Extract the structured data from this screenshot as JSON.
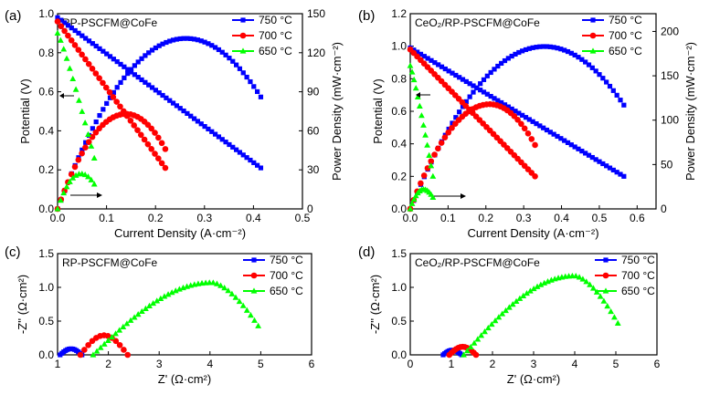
{
  "chart_data": [
    {
      "id": "a",
      "type": "line",
      "panel_label": "(a)",
      "title": "RP-PSCFM@CoFe",
      "xlabel": "Current Density (A·cm⁻²)",
      "ylabel": "Potential (V)",
      "y2label": "Power Density  (mW·cm⁻²)",
      "xlim": [
        0,
        0.5
      ],
      "ylim": [
        0,
        1.0
      ],
      "y2lim": [
        0,
        150
      ],
      "xticks": [
        "0.0",
        "0.1",
        "0.2",
        "0.3",
        "0.4",
        "0.5"
      ],
      "yticks": [
        "0.0",
        "0.2",
        "0.4",
        "0.6",
        "0.8",
        "1.0"
      ],
      "y2ticks": [
        "0",
        "30",
        "60",
        "90",
        "120",
        "150"
      ],
      "legend_position": "top-right",
      "series": [
        {
          "name": "750 °C",
          "color": "#0000ff",
          "marker": "square",
          "jmax": 0.415,
          "v0": 0.98,
          "vend": 0.21,
          "pmax": 131,
          "pk": 0.262,
          "pend": 86
        },
        {
          "name": "700 °C",
          "color": "#ff0000",
          "marker": "circle",
          "jmax": 0.22,
          "v0": 0.96,
          "vend": 0.21,
          "pmax": 73,
          "pk": 0.14,
          "pend": 46
        },
        {
          "name": "650 °C",
          "color": "#00ff00",
          "marker": "triangle",
          "jmax": 0.075,
          "v0": 0.9,
          "vend": 0.26,
          "pmax": 27,
          "pk": 0.048,
          "pend": 19
        }
      ]
    },
    {
      "id": "b",
      "type": "line",
      "panel_label": "(b)",
      "title": "CeO₂/RP-PSCFM@CoFe",
      "xlabel": "Current Density (A·cm⁻²)",
      "ylabel": "Potential (V)",
      "y2label": "Power Density  (mW·cm⁻²)",
      "xlim": [
        0,
        0.65
      ],
      "ylim": [
        0,
        1.2
      ],
      "y2lim": [
        0,
        220
      ],
      "xticks": [
        "0.0",
        "0.1",
        "0.2",
        "0.3",
        "0.4",
        "0.5",
        "0.6"
      ],
      "yticks": [
        "0.0",
        "0.2",
        "0.4",
        "0.6",
        "0.8",
        "1.0",
        "1.2"
      ],
      "y2ticks": [
        "0",
        "50",
        "100",
        "150",
        "200"
      ],
      "legend_position": "top-right",
      "series": [
        {
          "name": "750 °C",
          "color": "#0000ff",
          "marker": "square",
          "jmax": 0.565,
          "v0": 0.99,
          "vend": 0.2,
          "pmax": 183,
          "pk": 0.355,
          "pend": 117
        },
        {
          "name": "700 °C",
          "color": "#ff0000",
          "marker": "circle",
          "jmax": 0.33,
          "v0": 0.98,
          "vend": 0.2,
          "pmax": 118,
          "pk": 0.21,
          "pend": 72
        },
        {
          "name": "650 °C",
          "color": "#00ff00",
          "marker": "triangle",
          "jmax": 0.06,
          "v0": 0.88,
          "vend": 0.2,
          "pmax": 22,
          "pk": 0.035,
          "pend": 13
        }
      ]
    },
    {
      "id": "c",
      "type": "scatter",
      "panel_label": "(c)",
      "title": "RP-PSCFM@CoFe",
      "xlabel": "Z' (Ω·cm²)",
      "ylabel": "-Z'' (Ω·cm²)",
      "xlim": [
        1,
        6
      ],
      "ylim": [
        0,
        1.5
      ],
      "xticks": [
        "1",
        "2",
        "3",
        "4",
        "5",
        "6"
      ],
      "yticks": [
        "0.0",
        "0.5",
        "1.0",
        "1.5"
      ],
      "legend_position": "top-right",
      "series": [
        {
          "name": "750 °C",
          "color": "#0000ff",
          "marker": "square",
          "z0": 1.05,
          "z1": 1.48,
          "h": 0.09
        },
        {
          "name": "700 °C",
          "color": "#ff0000",
          "marker": "circle",
          "z0": 1.45,
          "z1": 2.38,
          "h": 0.29
        },
        {
          "name": "650 °C",
          "color": "#00ff00",
          "marker": "triangle",
          "z0": 1.7,
          "z1": 4.95,
          "h": 1.07
        }
      ]
    },
    {
      "id": "d",
      "type": "scatter",
      "panel_label": "(d)",
      "title": "CeO₂/RP-PSCFM@CoFe",
      "xlabel": "Z' (Ω·cm²)",
      "ylabel": "-Z'' (Ω·cm²)",
      "xlim": [
        0,
        6
      ],
      "ylim": [
        0,
        1.5
      ],
      "xticks": [
        "0",
        "1",
        "2",
        "3",
        "4",
        "5",
        "6"
      ],
      "yticks": [
        "0.0",
        "0.5",
        "1.0",
        "1.5"
      ],
      "legend_position": "top-right",
      "series": [
        {
          "name": "750 °C",
          "color": "#0000ff",
          "marker": "square",
          "z0": 0.8,
          "z1": 1.25,
          "h": 0.07
        },
        {
          "name": "700 °C",
          "color": "#ff0000",
          "marker": "circle",
          "z0": 0.95,
          "z1": 1.6,
          "h": 0.12
        },
        {
          "name": "650 °C",
          "color": "#00ff00",
          "marker": "triangle",
          "z0": 1.3,
          "z1": 5.05,
          "h": 1.17
        }
      ]
    }
  ]
}
